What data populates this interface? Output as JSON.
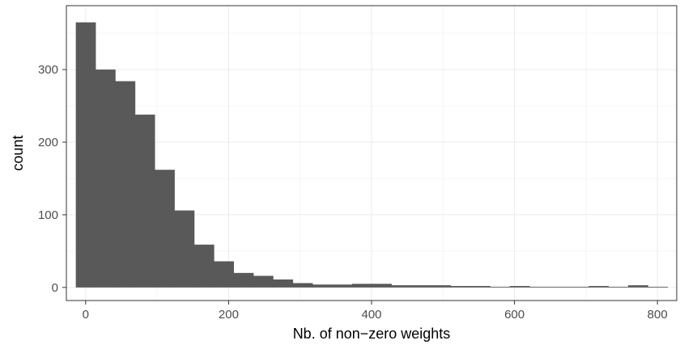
{
  "chart_data": {
    "type": "bar",
    "subtype": "histogram",
    "title": "",
    "xlabel": "Nb. of non−zero weights",
    "ylabel": "count",
    "xlim": [
      -27,
      827
    ],
    "ylim": [
      -18,
      388
    ],
    "grid": true,
    "legend": "none",
    "bin_width": 27.6,
    "bin_start": -13.8,
    "x_ticks": [
      0,
      200,
      400,
      600,
      800
    ],
    "x_tick_labels": [
      "0",
      "200",
      "400",
      "600",
      "800"
    ],
    "y_ticks": [
      0,
      100,
      200,
      300
    ],
    "y_tick_labels": [
      "0",
      "100",
      "200",
      "300"
    ],
    "x": [
      0,
      27.6,
      55.2,
      82.8,
      110.4,
      138,
      165.6,
      193.2,
      220.8,
      248.4,
      276,
      303.6,
      331.2,
      358.8,
      386.4,
      414,
      441.6,
      469.2,
      496.8,
      524.4,
      552,
      579.6,
      607.2,
      634.8,
      662.4,
      690,
      717.6,
      745.2,
      772.8,
      800.4
    ],
    "values": [
      365,
      300,
      284,
      238,
      162,
      106,
      59,
      36,
      20,
      16,
      11,
      6,
      4,
      4,
      5,
      5,
      3,
      3,
      3,
      2,
      2,
      1,
      2,
      1,
      1,
      1,
      2,
      1,
      3,
      1
    ],
    "colors": {
      "bar": "#595959",
      "grid_major": "#ebebeb",
      "grid_minor": "#f5f5f5",
      "panel_border": "#333333",
      "background": "#ffffff"
    }
  }
}
